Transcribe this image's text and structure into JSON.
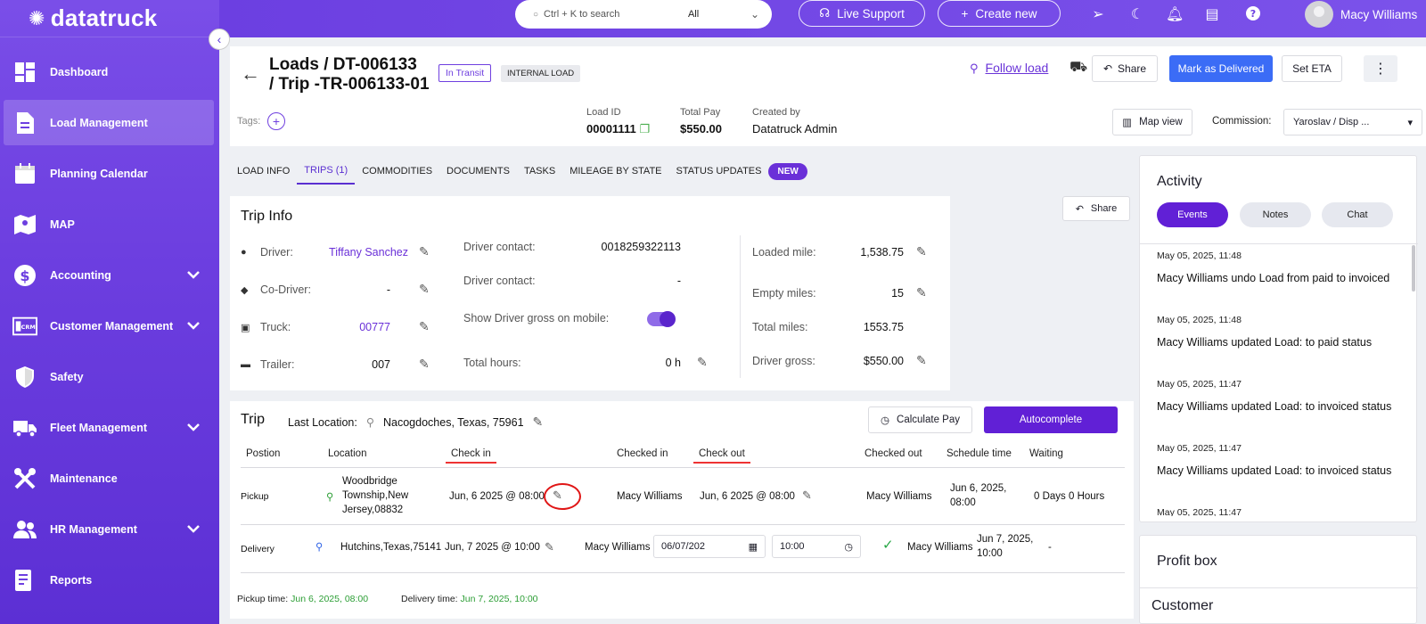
{
  "brand": {
    "logo": "datatruck"
  },
  "sidebar": {
    "items": [
      {
        "label": "Dashboard",
        "icon": "dashboard-icon",
        "has_chevron": false
      },
      {
        "label": "Load Management",
        "icon": "document-icon",
        "has_chevron": false,
        "active": true
      },
      {
        "label": "Planning Calendar",
        "icon": "calendar-icon",
        "has_chevron": false
      },
      {
        "label": "MAP",
        "icon": "map-icon",
        "has_chevron": false
      },
      {
        "label": "Accounting",
        "icon": "dollar-icon",
        "has_chevron": true
      },
      {
        "label": "Customer Management",
        "icon": "crm-icon",
        "has_chevron": true
      },
      {
        "label": "Safety",
        "icon": "shield-icon",
        "has_chevron": false
      },
      {
        "label": "Fleet Management",
        "icon": "truck-icon",
        "has_chevron": true
      },
      {
        "label": "Maintenance",
        "icon": "wrench-icon",
        "has_chevron": false
      },
      {
        "label": "HR Management",
        "icon": "people-icon",
        "has_chevron": true
      },
      {
        "label": "Reports",
        "icon": "report-icon",
        "has_chevron": false
      }
    ]
  },
  "topbar": {
    "search_placeholder": "Ctrl + K to search",
    "search_scope": "All",
    "live_support": "Live Support",
    "create_new": "Create new",
    "user_name": "Macy Williams"
  },
  "header": {
    "title_line1": "Loads / DT-006133",
    "title_line2": "/ Trip -TR-006133-01",
    "status": "In Transit",
    "load_type": "INTERNAL LOAD",
    "follow_load": "Follow load",
    "share": "Share",
    "mark_delivered": "Mark as Delivered",
    "set_eta": "Set ETA",
    "tags_label": "Tags:",
    "load_id_label": "Load ID",
    "load_id": "00001111",
    "total_pay_label": "Total Pay",
    "total_pay": "$550.00",
    "created_by_label": "Created by",
    "created_by": "Datatruck Admin",
    "map_view": "Map view",
    "commission_label": "Commission:",
    "commission_value": "Yaroslav  / Disp ..."
  },
  "tabs": {
    "load_info": "LOAD INFO",
    "trips": "TRIPS  (1)",
    "commodities": "COMMODITIES",
    "documents": "DOCUMENTS",
    "tasks": "TASKS",
    "mileage": "MILEAGE BY STATE",
    "status_updates": "STATUS UPDATES",
    "new_badge": "NEW"
  },
  "trip_info": {
    "title": "Trip Info",
    "share": "Share",
    "driver_label": "Driver:",
    "driver": "Tiffany Sanchez",
    "co_driver_label": "Co-Driver:",
    "co_driver": "-",
    "truck_label": "Truck:",
    "truck": "00777",
    "trailer_label": "Trailer:",
    "trailer": "007",
    "driver_contact_label": "Driver contact:",
    "driver_contact": "0018259322113",
    "driver_contact2_label": "Driver contact:",
    "driver_contact2": "-",
    "show_gross_label": "Show Driver gross on mobile:",
    "total_hours_label": "Total hours:",
    "total_hours": "0 h",
    "loaded_mile_label": "Loaded mile:",
    "loaded_mile": "1,538.75",
    "empty_miles_label": "Empty miles:",
    "empty_miles": "15",
    "total_miles_label": "Total miles:",
    "total_miles": "1553.75",
    "driver_gross_label": "Driver gross:",
    "driver_gross": "$550.00"
  },
  "trip": {
    "title": "Trip",
    "last_location_label": "Last Location:",
    "last_location": "Nacogdoches, Texas, 75961",
    "calculate_pay": "Calculate Pay",
    "autocomplete": "Autocomplete",
    "columns": {
      "position": "Postion",
      "location": "Location",
      "check_in": "Check in",
      "checked_in": "Checked in",
      "check_out": "Check out",
      "checked_out": "Checked out",
      "schedule_time": "Schedule time",
      "waiting": "Waiting"
    },
    "pickup": {
      "position": "Pickup",
      "location_l1": "Woodbridge",
      "location_l2": "Township,New",
      "location_l3": "Jersey,08832",
      "check_in": "Jun, 6 2025 @ 08:00",
      "checked_in": "Macy Williams",
      "check_out": "Jun, 6 2025 @ 08:00",
      "checked_out": "Macy Williams",
      "schedule_l1": "Jun 6, 2025,",
      "schedule_l2": "08:00",
      "waiting": "0 Days 0 Hours"
    },
    "delivery": {
      "position": "Delivery",
      "location": "Hutchins,Texas,75141",
      "check_in": "Jun, 7 2025 @ 10:00",
      "checked_in": "Macy Williams",
      "date_input": "06/07/202",
      "time_input": "10:00",
      "checked_out": "Macy Williams",
      "schedule_l1": "Jun 7, 2025,",
      "schedule_l2": "10:00",
      "waiting": "-"
    },
    "pickup_time_label": "Pickup time:",
    "pickup_time": "Jun 6, 2025, 08:00",
    "delivery_time_label": "Delivery time:",
    "delivery_time": "Jun 7, 2025, 10:00"
  },
  "activity": {
    "title": "Activity",
    "tab_events": "Events",
    "tab_notes": "Notes",
    "tab_chat": "Chat",
    "events": [
      {
        "time": "May 05, 2025, 11:48",
        "text": "Macy Williams undo Load from paid to invoiced"
      },
      {
        "time": "May 05, 2025, 11:48",
        "text": "Macy Williams updated Load: to paid status"
      },
      {
        "time": "May 05, 2025, 11:47",
        "text": "Macy Williams updated Load: to invoiced status"
      },
      {
        "time": "May 05, 2025, 11:47",
        "text": "Macy Williams updated Load: to invoiced status"
      },
      {
        "time": "May 05, 2025, 11:47",
        "text": ""
      }
    ]
  },
  "profit_box": {
    "title": "Profit box",
    "customer": "Customer"
  }
}
